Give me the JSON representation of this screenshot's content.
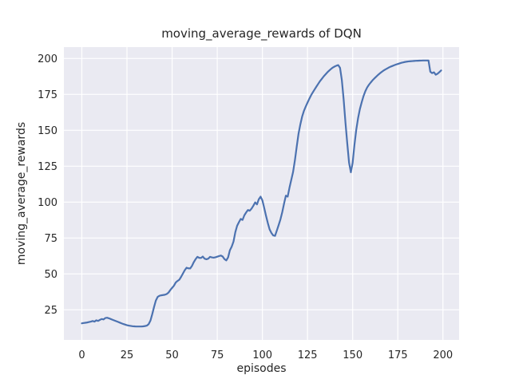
{
  "chart_data": {
    "type": "line",
    "title": "moving_average_rewards of DQN",
    "xlabel": "episodes",
    "ylabel": "moving_average_rewards",
    "x_ticks": [
      0,
      25,
      50,
      75,
      100,
      125,
      150,
      175,
      200
    ],
    "y_ticks": [
      25,
      50,
      75,
      100,
      125,
      150,
      175,
      200
    ],
    "xlim": [
      -9.95,
      208.95
    ],
    "ylim": [
      4.05,
      207.95
    ],
    "grid": true,
    "legend": "none",
    "style": {
      "line_color": "#4c72b0",
      "line_width": 2.2,
      "plot_bg": "#eaeaf2",
      "grid_color": "#ffffff",
      "text_color": "#262626",
      "figure_bg": "#ffffff"
    },
    "series": [
      {
        "name": "moving_average_rewards",
        "x_start": 0,
        "x_step": 1,
        "values": [
          15.6,
          15.8,
          16.0,
          16.2,
          16.5,
          16.8,
          17.2,
          16.8,
          17.7,
          17.3,
          18.0,
          18.6,
          18.3,
          19.3,
          19.5,
          19.1,
          18.6,
          18.1,
          17.6,
          17.1,
          16.6,
          16.1,
          15.6,
          15.1,
          14.7,
          14.3,
          14.0,
          13.8,
          13.6,
          13.5,
          13.4,
          13.4,
          13.4,
          13.4,
          13.5,
          13.7,
          14.0,
          15.0,
          17.5,
          22.0,
          27.0,
          31.5,
          34.0,
          34.8,
          35.1,
          35.3,
          35.5,
          36.0,
          37.0,
          38.8,
          40.3,
          41.8,
          44.0,
          45.1,
          46.0,
          48.0,
          50.3,
          52.6,
          54.3,
          53.9,
          53.8,
          55.6,
          58.2,
          60.3,
          61.9,
          61.2,
          61.1,
          62.1,
          60.6,
          60.2,
          60.6,
          61.9,
          61.5,
          61.3,
          61.6,
          62.0,
          62.4,
          62.8,
          62.1,
          60.3,
          59.4,
          61.5,
          66.5,
          69.0,
          72.5,
          79.0,
          83.5,
          86.0,
          88.3,
          87.6,
          90.8,
          92.8,
          94.5,
          94.0,
          95.5,
          97.5,
          99.8,
          98.4,
          102.0,
          103.8,
          101.2,
          96.0,
          90.5,
          85.5,
          81.0,
          78.5,
          76.8,
          76.5,
          80.2,
          84.0,
          88.0,
          93.0,
          99.0,
          104.5,
          103.8,
          110.0,
          115.5,
          121.0,
          129.0,
          138.5,
          147.5,
          154.0,
          159.5,
          163.5,
          166.5,
          169.3,
          172.0,
          174.5,
          176.6,
          178.6,
          180.6,
          182.5,
          184.4,
          186.0,
          187.6,
          189.0,
          190.4,
          191.6,
          192.7,
          193.7,
          194.4,
          195.0,
          195.4,
          193.5,
          185.0,
          171.5,
          155.5,
          141.0,
          127.5,
          120.8,
          127.5,
          140.0,
          150.5,
          158.5,
          164.8,
          169.5,
          173.8,
          177.2,
          179.8,
          181.7,
          183.3,
          184.8,
          186.1,
          187.3,
          188.5,
          189.6,
          190.6,
          191.5,
          192.3,
          193.0,
          193.7,
          194.3,
          194.8,
          195.3,
          195.8,
          196.2,
          196.6,
          197.0,
          197.3,
          197.6,
          197.8,
          198.0,
          198.1,
          198.2,
          198.3,
          198.4,
          198.45,
          198.5,
          198.55,
          198.6,
          198.6,
          198.6,
          198.6,
          190.8,
          189.8,
          190.4,
          188.7,
          189.4,
          190.5,
          191.7
        ]
      }
    ]
  }
}
